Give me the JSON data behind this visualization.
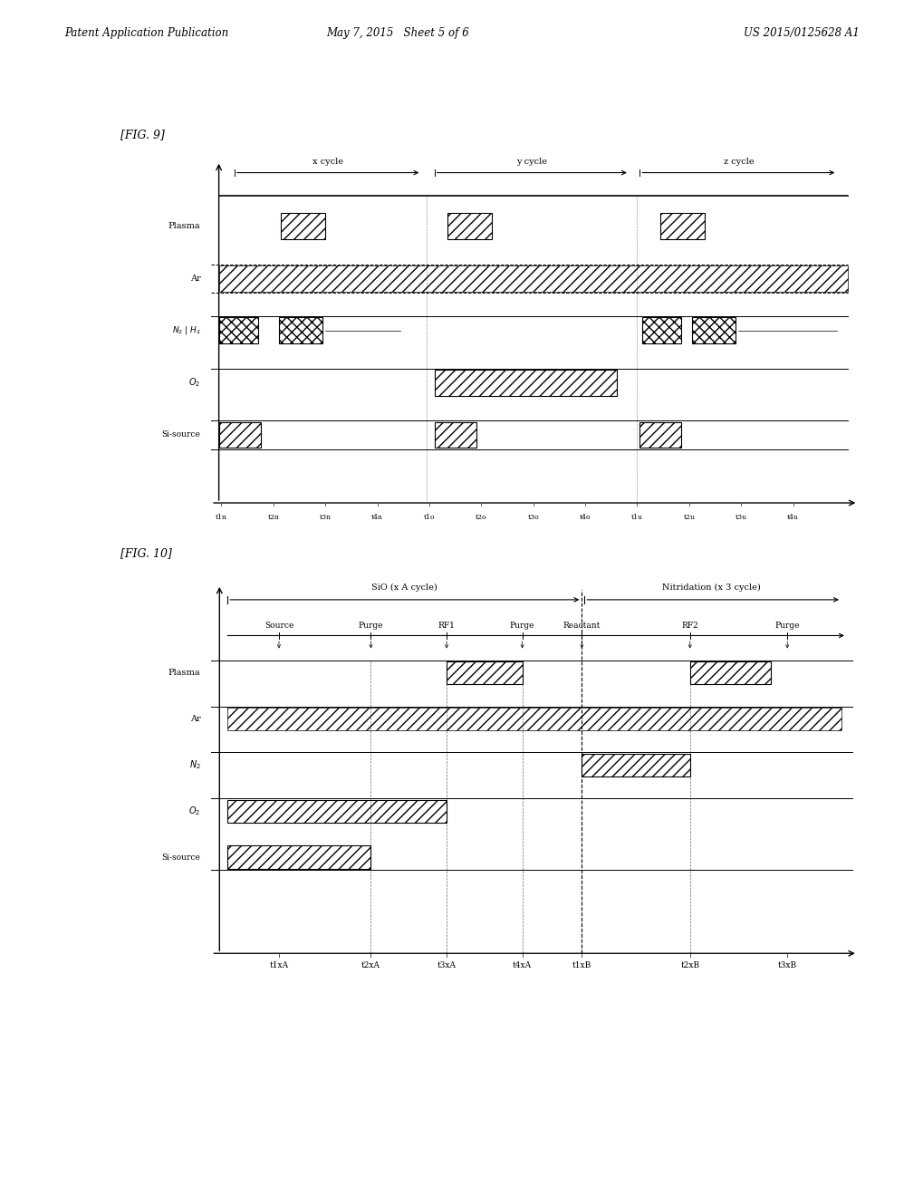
{
  "header_left": "Patent Application Publication",
  "header_mid": "May 7, 2015   Sheet 5 of 6",
  "header_right": "US 2015/0125628 A1",
  "fig9_label": "[FIG. 9]",
  "fig10_label": "[FIG. 10]",
  "bg_color": "#ffffff",
  "text_color": "#000000"
}
